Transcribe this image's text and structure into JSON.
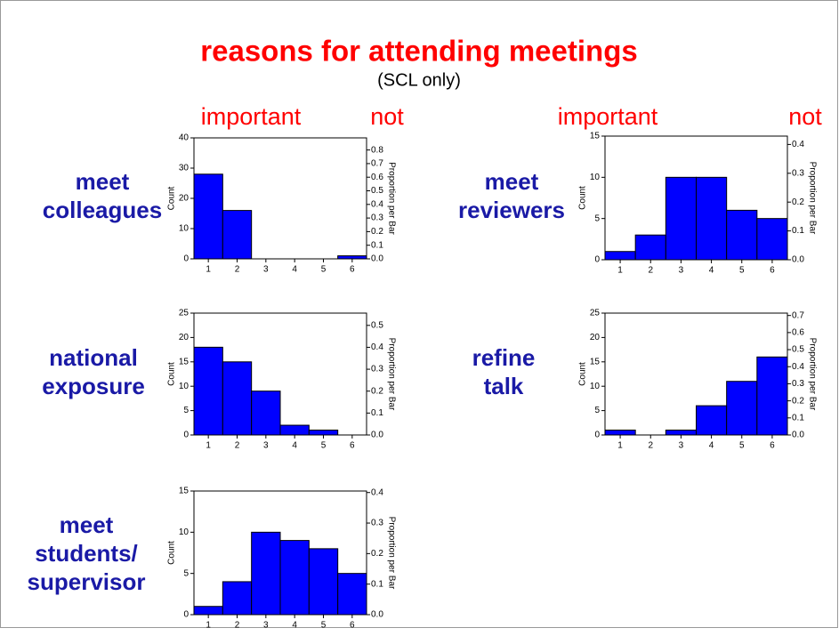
{
  "title": "reasons for attending meetings",
  "subtitle": "(SCL only)",
  "columns": [
    {
      "left": "important",
      "right": "not"
    },
    {
      "left": "important",
      "right": "not"
    }
  ],
  "chart_data": [
    {
      "type": "bar",
      "label": [
        "meet",
        "colleagues"
      ],
      "categories": [
        1,
        2,
        3,
        4,
        5,
        6
      ],
      "values": [
        28,
        16,
        0,
        0,
        0,
        1
      ],
      "color": "#0000ff",
      "ylabel": "Count",
      "ylim": [
        0,
        40
      ],
      "yticks": [
        0,
        10,
        20,
        30,
        40
      ],
      "y2label": "Proportion per Bar",
      "y2lim": [
        0,
        0.889
      ],
      "y2ticks": [
        {
          "value": 0,
          "label": "0.0"
        },
        0.1,
        0.2,
        0.3,
        0.4,
        0.5,
        0.6,
        0.7,
        0.8
      ]
    },
    {
      "type": "bar",
      "label": [
        "national",
        "exposure"
      ],
      "categories": [
        1,
        2,
        3,
        4,
        5,
        6
      ],
      "values": [
        18,
        15,
        9,
        2,
        1,
        0
      ],
      "color": "#0000ff",
      "ylabel": "Count",
      "ylim": [
        0,
        25
      ],
      "yticks": [
        0,
        5,
        10,
        15,
        20,
        25
      ],
      "y2label": "Proportion per Bar",
      "y2lim": [
        0,
        0.556
      ],
      "y2ticks": [
        {
          "value": 0,
          "label": "0.0"
        },
        0.1,
        0.2,
        0.3,
        0.4,
        0.5
      ]
    },
    {
      "type": "bar",
      "label": [
        "meet",
        "students/",
        "supervisor"
      ],
      "categories": [
        1,
        2,
        3,
        4,
        5,
        6
      ],
      "values": [
        1,
        4,
        10,
        9,
        8,
        5
      ],
      "color": "#0000ff",
      "ylabel": "Count",
      "ylim": [
        0,
        15
      ],
      "yticks": [
        0,
        5,
        10,
        15
      ],
      "y2label": "Proportion per Bar",
      "y2lim": [
        0,
        0.405
      ],
      "y2ticks": [
        {
          "value": 0,
          "label": "0.0"
        },
        0.1,
        0.2,
        0.3,
        0.4
      ]
    },
    {
      "type": "bar",
      "label": [
        "meet",
        "reviewers"
      ],
      "categories": [
        1,
        2,
        3,
        4,
        5,
        6
      ],
      "values": [
        1,
        3,
        10,
        10,
        6,
        5
      ],
      "color": "#0000ff",
      "ylabel": "Count",
      "ylim": [
        0,
        15
      ],
      "yticks": [
        0,
        5,
        10,
        15
      ],
      "y2label": "Proportion per Bar",
      "y2lim": [
        0,
        0.429
      ],
      "y2ticks": [
        {
          "value": 0,
          "label": "0.0"
        },
        0.1,
        0.2,
        0.3,
        0.4
      ]
    },
    {
      "type": "bar",
      "label": [
        "refine",
        "talk"
      ],
      "categories": [
        1,
        2,
        3,
        4,
        5,
        6
      ],
      "values": [
        1,
        0,
        1,
        6,
        11,
        16
      ],
      "color": "#0000ff",
      "ylabel": "Count",
      "ylim": [
        0,
        25
      ],
      "yticks": [
        0,
        5,
        10,
        15,
        20,
        25
      ],
      "y2label": "Proportion per Bar",
      "y2lim": [
        0,
        0.714
      ],
      "y2ticks": [
        {
          "value": 0,
          "label": "0.0"
        },
        0.1,
        0.2,
        0.3,
        0.4,
        0.5,
        0.6,
        0.7
      ]
    }
  ]
}
